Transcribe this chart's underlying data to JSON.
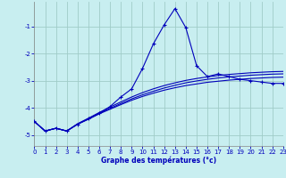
{
  "xlabel": "Graphe des températures (°c)",
  "background_color": "#c8eef0",
  "grid_color": "#a0ccc8",
  "line_color": "#0000bb",
  "x": [
    0,
    1,
    2,
    3,
    4,
    5,
    6,
    7,
    8,
    9,
    10,
    11,
    12,
    13,
    14,
    15,
    16,
    17,
    18,
    19,
    20,
    21,
    22,
    23
  ],
  "y_main": [
    -4.5,
    -4.85,
    -4.75,
    -4.85,
    -4.6,
    -4.4,
    -4.2,
    -3.95,
    -3.6,
    -3.3,
    -2.55,
    -1.65,
    -0.95,
    -0.35,
    -1.05,
    -2.45,
    -2.85,
    -2.75,
    -2.85,
    -2.95,
    -3.0,
    -3.05,
    -3.1,
    -3.1
  ],
  "y_line2": [
    -4.5,
    -4.85,
    -4.75,
    -4.85,
    -4.6,
    -4.42,
    -4.22,
    -4.05,
    -3.88,
    -3.72,
    -3.58,
    -3.46,
    -3.35,
    -3.26,
    -3.18,
    -3.12,
    -3.06,
    -3.02,
    -2.98,
    -2.95,
    -2.92,
    -2.9,
    -2.88,
    -2.87
  ],
  "y_line3": [
    -4.5,
    -4.85,
    -4.75,
    -4.85,
    -4.58,
    -4.38,
    -4.17,
    -3.97,
    -3.78,
    -3.6,
    -3.44,
    -3.3,
    -3.18,
    -3.08,
    -2.99,
    -2.92,
    -2.86,
    -2.81,
    -2.77,
    -2.74,
    -2.71,
    -2.69,
    -2.67,
    -2.66
  ],
  "y_line4": [
    -4.5,
    -4.85,
    -4.75,
    -4.85,
    -4.6,
    -4.4,
    -4.2,
    -4.02,
    -3.84,
    -3.67,
    -3.52,
    -3.39,
    -3.27,
    -3.17,
    -3.08,
    -3.01,
    -2.95,
    -2.9,
    -2.86,
    -2.83,
    -2.8,
    -2.78,
    -2.76,
    -2.75
  ],
  "ylim": [
    -5.4,
    -0.1
  ],
  "xlim": [
    0,
    23
  ],
  "yticks": [
    -5,
    -4,
    -3,
    -2,
    -1
  ],
  "xticks": [
    0,
    1,
    2,
    3,
    4,
    5,
    6,
    7,
    8,
    9,
    10,
    11,
    12,
    13,
    14,
    15,
    16,
    17,
    18,
    19,
    20,
    21,
    22,
    23
  ]
}
